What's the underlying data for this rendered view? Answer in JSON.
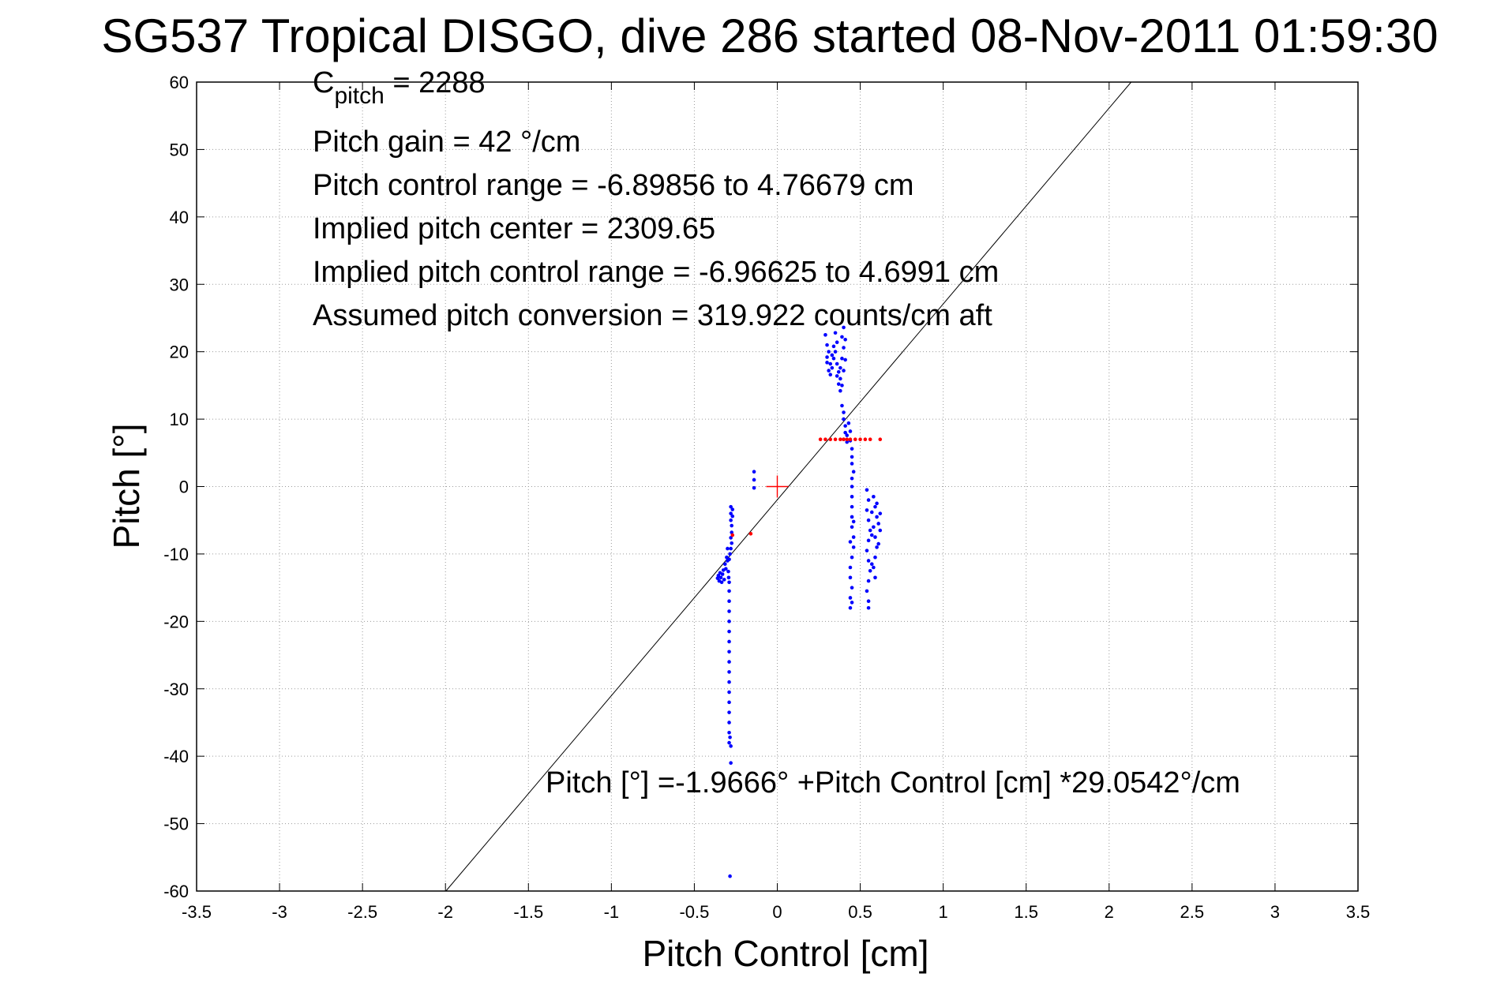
{
  "chart_data": {
    "type": "scatter",
    "title": "SG537 Tropical DISGO, dive 286 started 08-Nov-2011 01:59:30",
    "xlabel": "Pitch Control [cm]",
    "ylabel": "Pitch [°]",
    "xlim": [
      -3.5,
      3.5
    ],
    "ylim": [
      -60,
      60
    ],
    "xticks": [
      -3.5,
      -3,
      -2.5,
      -2,
      -1.5,
      -1,
      -0.5,
      0,
      0.5,
      1,
      1.5,
      2,
      2.5,
      3,
      3.5
    ],
    "xtick_labels": [
      "-3.5",
      "-3",
      "-2.5",
      "-2",
      "-1.5",
      "-1",
      "-0.5",
      "0",
      "0.5",
      "1",
      "1.5",
      "2",
      "2.5",
      "3",
      "3.5"
    ],
    "yticks": [
      -60,
      -50,
      -40,
      -30,
      -20,
      -10,
      0,
      10,
      20,
      30,
      40,
      50,
      60
    ],
    "ytick_labels": [
      "-60",
      "-50",
      "-40",
      "-30",
      "-20",
      "-10",
      "0",
      "10",
      "20",
      "30",
      "40",
      "50",
      "60"
    ],
    "grid": true,
    "annotations": {
      "cpitch_main": "C",
      "cpitch_sub": "pitch",
      "cpitch_value": " = 2288",
      "gain": "Pitch gain = 42 °/cm",
      "range": "Pitch control range = -6.89856 to 4.76679 cm",
      "center": "Implied pitch center = 2309.65",
      "implied_range": "Implied pitch control range = -6.96625 to 4.6991 cm",
      "conversion": "Assumed pitch conversion = 319.922 counts/cm aft",
      "fit_equation": "Pitch [°] =-1.9666° +Pitch Control [cm] *29.0542°/cm"
    },
    "fit_line": {
      "intercept": -1.9666,
      "slope": 29.0542
    },
    "center_marker": {
      "x": 0,
      "y": 0
    },
    "series": [
      {
        "color": "#0000ff",
        "points": [
          [
            -0.36,
            -13.6
          ],
          [
            -0.355,
            -13.2
          ],
          [
            -0.35,
            -14.0
          ],
          [
            -0.345,
            -12.8
          ],
          [
            -0.34,
            -13.5
          ],
          [
            -0.335,
            -14.2
          ],
          [
            -0.33,
            -13.0
          ],
          [
            -0.325,
            -12.4
          ],
          [
            -0.32,
            -13.8
          ],
          [
            -0.315,
            -11.5
          ],
          [
            -0.31,
            -12.2
          ],
          [
            -0.305,
            -10.5
          ],
          [
            -0.3,
            -9.2
          ],
          [
            -0.3,
            -11.0
          ],
          [
            -0.295,
            -12.6
          ],
          [
            -0.293,
            -13.5
          ],
          [
            -0.29,
            -14.2
          ],
          [
            -0.29,
            -15.5
          ],
          [
            -0.29,
            -17.0
          ],
          [
            -0.29,
            -18.5
          ],
          [
            -0.29,
            -20.0
          ],
          [
            -0.29,
            -21.5
          ],
          [
            -0.29,
            -23.0
          ],
          [
            -0.29,
            -24.5
          ],
          [
            -0.29,
            -26.0
          ],
          [
            -0.29,
            -27.5
          ],
          [
            -0.29,
            -29.0
          ],
          [
            -0.29,
            -30.5
          ],
          [
            -0.29,
            -32.0
          ],
          [
            -0.29,
            -33.5
          ],
          [
            -0.29,
            -35.0
          ],
          [
            -0.29,
            -36.5
          ],
          [
            -0.29,
            -38.0
          ],
          [
            -0.285,
            -37.2
          ],
          [
            -0.28,
            -38.5
          ],
          [
            -0.28,
            -41.0
          ],
          [
            -0.285,
            -57.8
          ],
          [
            -0.28,
            -3.0
          ],
          [
            -0.28,
            -4.0
          ],
          [
            -0.28,
            -5.0
          ],
          [
            -0.275,
            -5.8
          ],
          [
            -0.275,
            -6.8
          ],
          [
            -0.28,
            -7.6
          ],
          [
            -0.27,
            -4.4
          ],
          [
            -0.27,
            -3.4
          ],
          [
            -0.275,
            -8.4
          ],
          [
            -0.28,
            -9.2
          ],
          [
            -0.285,
            -10.0
          ],
          [
            -0.29,
            -10.8
          ],
          [
            -0.14,
            1.0
          ],
          [
            -0.14,
            2.2
          ],
          [
            -0.14,
            -0.2
          ],
          [
            0.29,
            22.5
          ],
          [
            0.3,
            21.0
          ],
          [
            0.31,
            20.0
          ],
          [
            0.3,
            19.2
          ],
          [
            0.32,
            18.2
          ],
          [
            0.33,
            19.5
          ],
          [
            0.34,
            20.8
          ],
          [
            0.35,
            22.8
          ],
          [
            0.36,
            21.4
          ],
          [
            0.35,
            20.0
          ],
          [
            0.34,
            19.0
          ],
          [
            0.33,
            17.6
          ],
          [
            0.32,
            16.6
          ],
          [
            0.31,
            17.2
          ],
          [
            0.3,
            18.4
          ],
          [
            0.36,
            18.2
          ],
          [
            0.37,
            17.0
          ],
          [
            0.38,
            16.0
          ],
          [
            0.37,
            15.2
          ],
          [
            0.36,
            16.4
          ],
          [
            0.38,
            17.6
          ],
          [
            0.39,
            19.0
          ],
          [
            0.4,
            23.6
          ],
          [
            0.39,
            22.2
          ],
          [
            0.4,
            20.6
          ],
          [
            0.41,
            21.8
          ],
          [
            0.41,
            18.8
          ],
          [
            0.4,
            17.2
          ],
          [
            0.39,
            15.0
          ],
          [
            0.38,
            14.2
          ],
          [
            0.39,
            12.0
          ],
          [
            0.4,
            11.0
          ],
          [
            0.4,
            10.0
          ],
          [
            0.41,
            9.0
          ],
          [
            0.41,
            8.0
          ],
          [
            0.4,
            7.0
          ],
          [
            0.42,
            7.6
          ],
          [
            0.42,
            6.6
          ],
          [
            0.43,
            9.4
          ],
          [
            0.44,
            8.2
          ],
          [
            0.44,
            6.8
          ],
          [
            0.45,
            5.6
          ],
          [
            0.45,
            4.4
          ],
          [
            0.45,
            3.4
          ],
          [
            0.46,
            2.2
          ],
          [
            0.45,
            1.2
          ],
          [
            0.45,
            0.0
          ],
          [
            0.45,
            -1.5
          ],
          [
            0.45,
            -3.0
          ],
          [
            0.45,
            -4.5
          ],
          [
            0.45,
            -6.0
          ],
          [
            0.46,
            -7.5
          ],
          [
            0.46,
            -9.0
          ],
          [
            0.45,
            -10.5
          ],
          [
            0.44,
            -12.0
          ],
          [
            0.44,
            -13.5
          ],
          [
            0.45,
            -15.0
          ],
          [
            0.44,
            -16.5
          ],
          [
            0.44,
            -18.0
          ],
          [
            0.45,
            -17.2
          ],
          [
            0.46,
            -5.2
          ],
          [
            0.44,
            -8.2
          ],
          [
            0.54,
            -0.5
          ],
          [
            0.55,
            -2.0
          ],
          [
            0.54,
            -3.5
          ],
          [
            0.55,
            -5.0
          ],
          [
            0.56,
            -6.5
          ],
          [
            0.55,
            -8.0
          ],
          [
            0.54,
            -9.5
          ],
          [
            0.55,
            -11.0
          ],
          [
            0.56,
            -12.5
          ],
          [
            0.55,
            -14.0
          ],
          [
            0.54,
            -15.5
          ],
          [
            0.55,
            -17.0
          ],
          [
            0.55,
            -18.0
          ],
          [
            0.58,
            -1.5
          ],
          [
            0.59,
            -3.0
          ],
          [
            0.6,
            -4.5
          ],
          [
            0.58,
            -6.0
          ],
          [
            0.59,
            -7.5
          ],
          [
            0.6,
            -9.0
          ],
          [
            0.59,
            -10.5
          ],
          [
            0.58,
            -12.0
          ],
          [
            0.59,
            -13.5
          ],
          [
            0.57,
            -11.5
          ],
          [
            0.6,
            -2.5
          ],
          [
            0.61,
            -5.5
          ],
          [
            0.61,
            -8.5
          ],
          [
            0.62,
            -4.0
          ],
          [
            0.62,
            -6.5
          ],
          [
            0.57,
            -3.8
          ],
          [
            0.57,
            -7.2
          ]
        ]
      },
      {
        "color": "#ff0000",
        "points": [
          [
            0.26,
            7.0
          ],
          [
            0.29,
            7.0
          ],
          [
            0.32,
            7.0
          ],
          [
            0.35,
            7.0
          ],
          [
            0.38,
            7.0
          ],
          [
            0.4,
            7.0
          ],
          [
            0.42,
            7.0
          ],
          [
            0.44,
            7.0
          ],
          [
            0.47,
            7.0
          ],
          [
            0.5,
            7.0
          ],
          [
            0.53,
            7.0
          ],
          [
            0.56,
            7.0
          ],
          [
            0.62,
            7.0
          ],
          [
            -0.27,
            -7.2
          ],
          [
            -0.16,
            -7.0
          ]
        ]
      }
    ]
  }
}
